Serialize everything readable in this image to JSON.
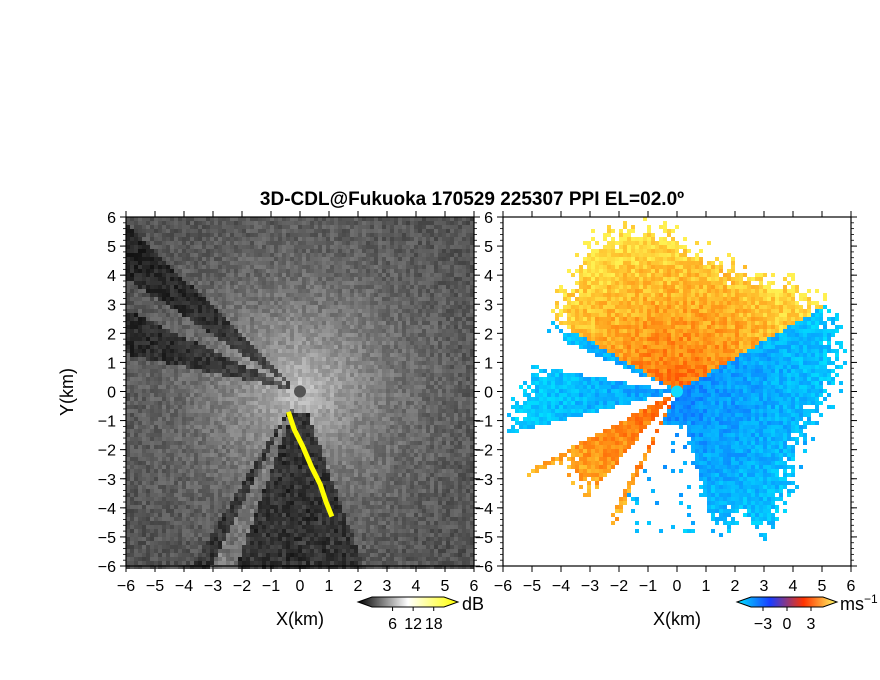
{
  "title": "3D-CDL@Fukuoka 170529 225307 PPI EL=02.0º",
  "chart_data": [
    {
      "type": "heatmap",
      "panel": "left",
      "quantity": "",
      "xlabel": "X(km)",
      "ylabel": "Y(km)",
      "xlim": [
        -6,
        6
      ],
      "ylim": [
        -6,
        6
      ],
      "xticks": [
        "−6",
        "−5",
        "−4",
        "−3",
        "−2",
        "−1",
        "0",
        "1",
        "2",
        "3",
        "4",
        "5",
        "6"
      ],
      "yticks": [
        "6",
        "5",
        "4",
        "3",
        "2",
        "1",
        "0",
        "−1",
        "−2",
        "−3",
        "−4",
        "−5",
        "−6"
      ],
      "colorbar": {
        "unit": "dB",
        "ticks": [
          "6",
          "12",
          "18"
        ],
        "tick_values": [
          6,
          12,
          18
        ],
        "range": [
          0,
          21
        ],
        "colors": [
          "#000000",
          "#ffffff",
          "#ffff00"
        ]
      },
      "radar_center": [
        0,
        0
      ],
      "beam_gaps_deg": [
        [
          155,
          168
        ],
        [
          136,
          147
        ]
      ],
      "clutter_notes": "yellow high-reflectivity echo along edge of sector from about (-0.4,-0.7) to (1.1,-4.3) km"
    },
    {
      "type": "heatmap",
      "panel": "right",
      "quantity": "",
      "xlabel": "X(km)",
      "ylabel": "",
      "xlim": [
        -6,
        6
      ],
      "ylim": [
        -6,
        6
      ],
      "xticks": [
        "−6",
        "−5",
        "−4",
        "−3",
        "−2",
        "−1",
        "0",
        "1",
        "2",
        "3",
        "4",
        "5",
        "6"
      ],
      "yticks": [
        "6",
        "5",
        "4",
        "3",
        "2",
        "1",
        "0",
        "−1",
        "−2",
        "−3",
        "−4",
        "−5",
        "−6"
      ],
      "colorbar": {
        "unit": "ms",
        "unit_exp": "−1",
        "ticks": [
          "−3",
          "0",
          "3"
        ],
        "tick_values": [
          -3,
          0,
          3
        ],
        "range": [
          -4.5,
          4.5
        ],
        "colors": [
          "#00e6ff",
          "#1a3cff",
          "#ff3300",
          "#ffff66"
        ]
      },
      "radar_center": [
        0,
        0
      ],
      "blank_sectors_deg": [
        [
          156,
          170
        ],
        [
          194,
          208
        ],
        [
          230,
          242
        ]
      ],
      "velocity_regions": [
        {
          "description": "receding (positive) toward north/northeast",
          "range_ms": [
            1,
            4
          ]
        },
        {
          "description": "approaching (negative) toward east and west",
          "range_ms": [
            -4,
            -1
          ]
        }
      ]
    }
  ],
  "colors": {
    "frame": "#000000",
    "background": "#ffffff",
    "center_marker_left": "#555555",
    "center_marker_right": "#10dcff"
  }
}
